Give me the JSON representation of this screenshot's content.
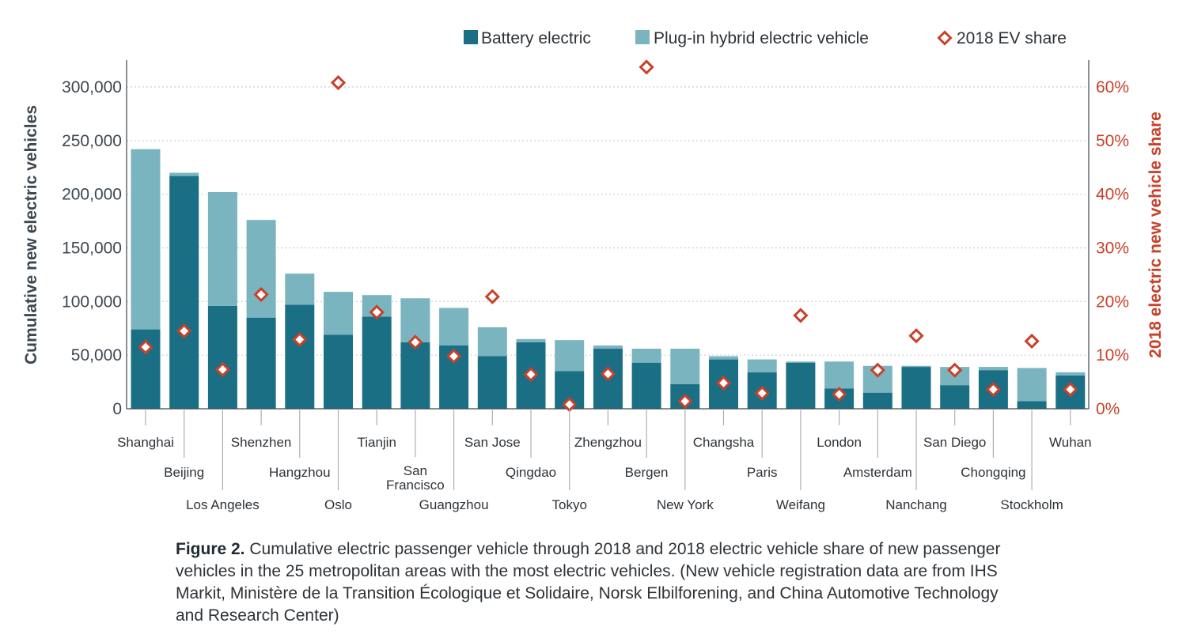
{
  "chart_data": {
    "type": "bar",
    "stacked": true,
    "categories": [
      "Shanghai",
      "Beijing",
      "Los Angeles",
      "Shenzhen",
      "Hangzhou",
      "Oslo",
      "Tianjin",
      "San Francisco",
      "Guangzhou",
      "San Jose",
      "Qingdao",
      "Tokyo",
      "Zhengzhou",
      "Bergen",
      "New York",
      "Changsha",
      "Paris",
      "Weifang",
      "London",
      "Amsterdam",
      "Nanchang",
      "San Diego",
      "Chongqing",
      "Stockholm",
      "Wuhan"
    ],
    "series": [
      {
        "name": "Battery electric",
        "color": "#1a6f84",
        "axis": "left",
        "values": [
          74000,
          217000,
          96000,
          85000,
          97000,
          69000,
          86000,
          62000,
          59000,
          49000,
          62000,
          35000,
          56000,
          43000,
          23000,
          46000,
          34000,
          43000,
          19000,
          15000,
          39000,
          22000,
          36000,
          7000,
          31000
        ]
      },
      {
        "name": "Plug-in hybrid electric vehicle",
        "color": "#79b4bf",
        "axis": "left",
        "values": [
          168000,
          3000,
          106000,
          91000,
          29000,
          40000,
          20000,
          41000,
          35000,
          27000,
          3000,
          29000,
          3000,
          13000,
          33000,
          3000,
          12000,
          1000,
          25000,
          25000,
          1000,
          17000,
          3000,
          31000,
          3000
        ]
      },
      {
        "name": "2018 EV share",
        "color": "#c8412a",
        "axis": "right",
        "marker": "diamond",
        "values": [
          11.5,
          14.5,
          7.3,
          21.3,
          12.9,
          60.8,
          18.0,
          12.4,
          9.8,
          20.9,
          6.4,
          0.8,
          6.5,
          63.7,
          1.4,
          4.8,
          2.9,
          17.4,
          2.7,
          7.2,
          13.6,
          7.2,
          3.6,
          12.6,
          3.6
        ]
      }
    ],
    "ylabel": "Cumulative new electric vehicles",
    "ylabel_right": "2018 electric new vehicle share",
    "ylim": [
      0,
      325000
    ],
    "ylim_right": [
      0,
      65
    ],
    "yticks": [
      "0",
      "50,000",
      "100,000",
      "150,000",
      "200,000",
      "250,000",
      "300,000"
    ],
    "yticks_right": [
      "0%",
      "10%",
      "20%",
      "30%",
      "40%",
      "50%",
      "60%"
    ],
    "grid": true,
    "legend_position": "top-right",
    "caption_label": "Figure 2.",
    "caption_text": "Cumulative electric passenger vehicle through 2018 and 2018 electric vehicle share of new passenger vehicles in the 25 metropolitan areas with the most electric vehicles. (New vehicle registration data are from IHS Markit, Ministère de la Transition Écologique et Solidaire, Norsk Elbilforening, and China Automotive Technology and Research Center)"
  }
}
